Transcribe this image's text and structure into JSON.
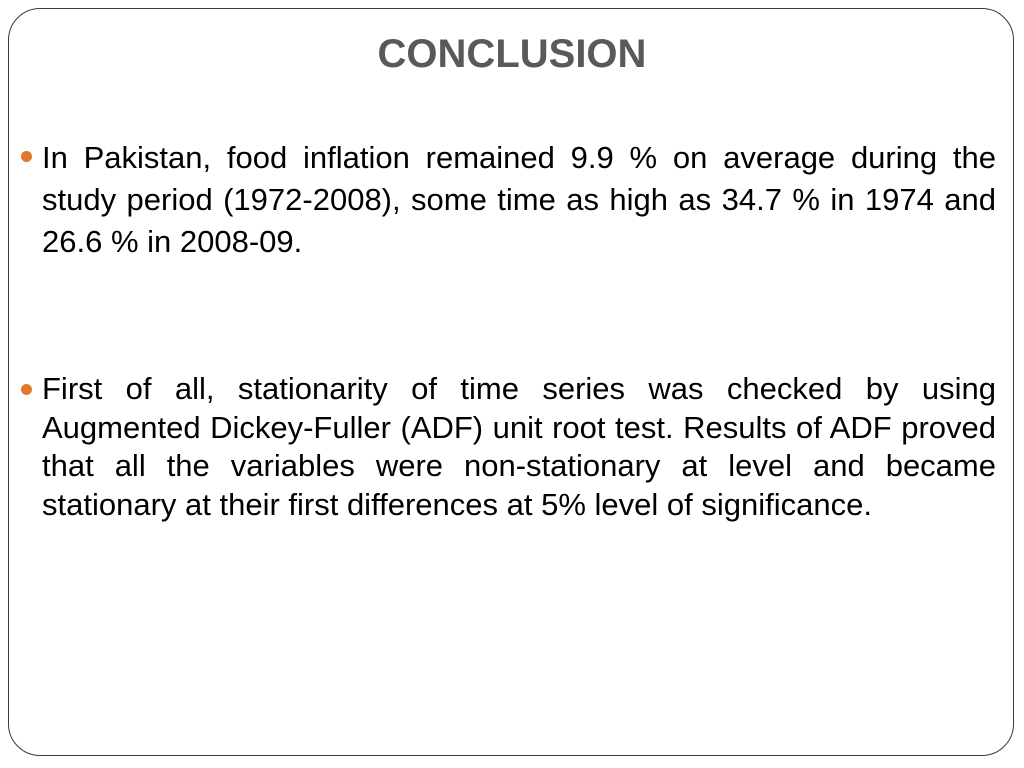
{
  "header": {
    "title": "CONCLUSION"
  },
  "bullets": [
    "In Pakistan, food inflation remained 9.9 % on average during the study period (1972-2008), some time as high as 34.7 % in 1974 and 26.6 % in 2008-09.",
    "First of all, stationarity of time series was checked by using Augmented Dickey-Fuller (ADF) unit root test. Results of ADF proved that all the variables were non-stationary at level and became stationary at their first differences at 5% level of significance."
  ]
}
